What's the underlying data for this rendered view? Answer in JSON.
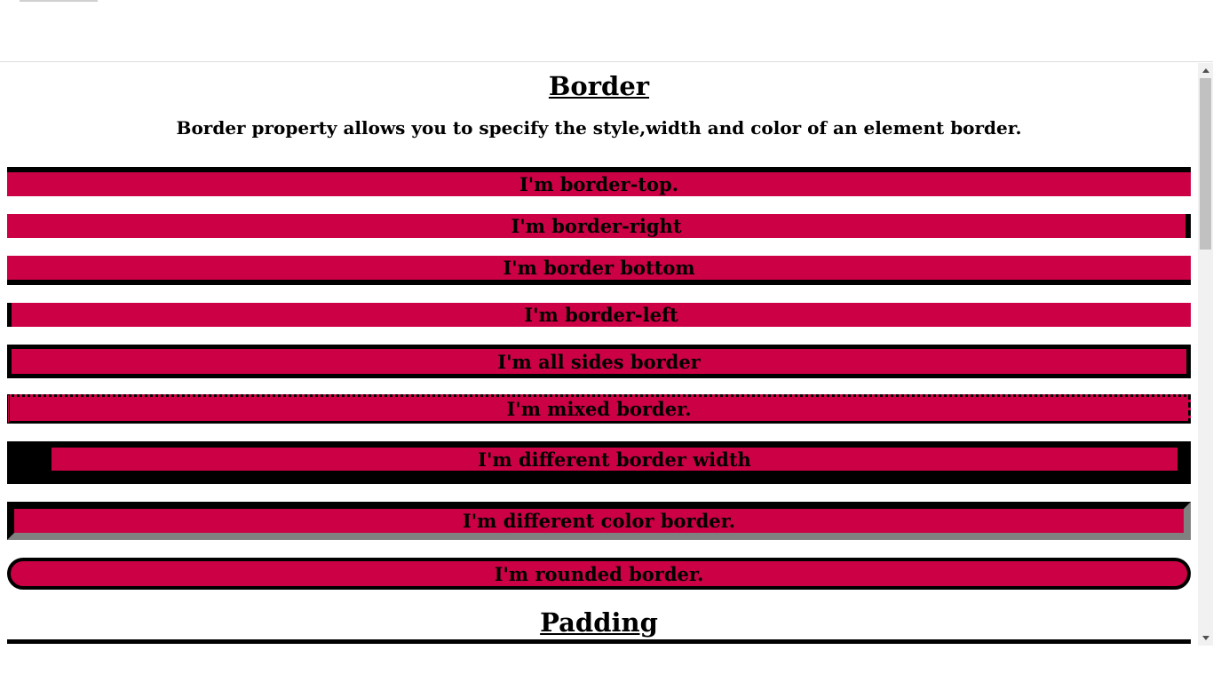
{
  "page": {
    "heading": "Border",
    "subtitle": "Border property allows you to specify the style,width and color of an element border."
  },
  "boxes": [
    {
      "label": "I'm border-top."
    },
    {
      "label": "I'm border-right"
    },
    {
      "label": "I'm border bottom"
    },
    {
      "label": "I'm border-left"
    },
    {
      "label": "I'm all sides border"
    },
    {
      "label": "I'm mixed border."
    },
    {
      "label": "I'm different border width"
    },
    {
      "label": "I'm different color border."
    },
    {
      "label": "I'm rounded border."
    }
  ],
  "next_section": {
    "heading": "Padding"
  },
  "colors": {
    "box_background": "#cc0044",
    "border": "#000000",
    "alt_border": "#808080"
  }
}
